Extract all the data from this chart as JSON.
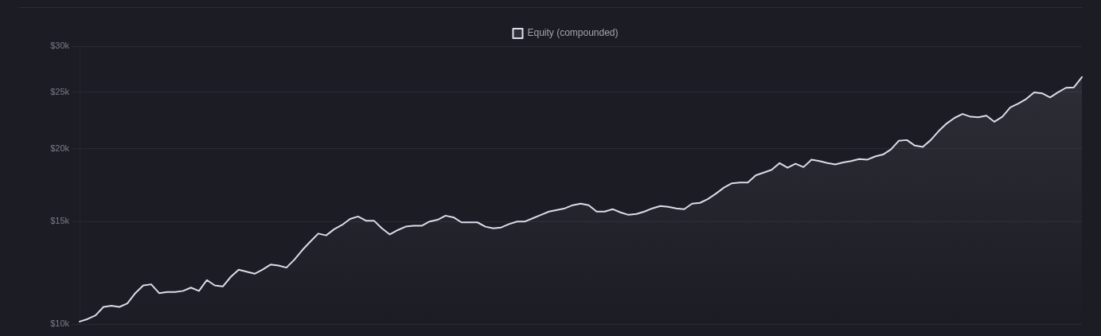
{
  "chart_data": {
    "type": "area",
    "legend": "top",
    "grid": "y",
    "log": "y",
    "tick_labels": "y",
    "categories": [
      null,
      null,
      null,
      null,
      null,
      null,
      null,
      null,
      null,
      null,
      null,
      null,
      null,
      null,
      null,
      null,
      null,
      null,
      null,
      null,
      null,
      null,
      null,
      null,
      null,
      null,
      null,
      null,
      null,
      null,
      null,
      null,
      null,
      null,
      null,
      null,
      null,
      null,
      null,
      null,
      null,
      null,
      null,
      null,
      null,
      null,
      null,
      null,
      null,
      null,
      null,
      null,
      null,
      null,
      null,
      null,
      null,
      null,
      null,
      null,
      null,
      null,
      null,
      null,
      null,
      null,
      null,
      null,
      null,
      null,
      null,
      null,
      null,
      null,
      null,
      null,
      null,
      null,
      null,
      null,
      null,
      null,
      null,
      null,
      null,
      null,
      null,
      null,
      null,
      null,
      null,
      null,
      null,
      null,
      null,
      null,
      null,
      null,
      null,
      null,
      null,
      null,
      null,
      null,
      null,
      null,
      null,
      null,
      null,
      null,
      null,
      null,
      null,
      null,
      null,
      null,
      null,
      null,
      null,
      null,
      null,
      null,
      null,
      null,
      null,
      null,
      null
    ],
    "series": [
      {
        "name": "Equity (compounded)",
        "color": "#dcdcea",
        "values": [
          10100,
          10200,
          10350,
          10700,
          10750,
          10700,
          10850,
          11300,
          11650,
          11700,
          11300,
          11350,
          11350,
          11400,
          11550,
          11400,
          11900,
          11650,
          11600,
          12050,
          12400,
          12300,
          12200,
          12400,
          12650,
          12600,
          12500,
          12900,
          13400,
          13850,
          14300,
          14200,
          14550,
          14800,
          15150,
          15300,
          15050,
          15050,
          14600,
          14250,
          14500,
          14700,
          14750,
          14750,
          15000,
          15100,
          15350,
          15250,
          14950,
          14950,
          14950,
          14700,
          14600,
          14650,
          14850,
          15000,
          15000,
          15200,
          15400,
          15600,
          15700,
          15800,
          16000,
          16100,
          16000,
          15600,
          15600,
          15750,
          15550,
          15400,
          15450,
          15600,
          15800,
          15950,
          15900,
          15800,
          15750,
          16100,
          16150,
          16400,
          16750,
          17150,
          17450,
          17500,
          17500,
          18000,
          18200,
          18400,
          18900,
          18550,
          18850,
          18600,
          19150,
          19050,
          18900,
          18800,
          18950,
          19050,
          19200,
          19150,
          19400,
          19550,
          19950,
          20650,
          20700,
          20250,
          20150,
          20700,
          21450,
          22100,
          22600,
          22950,
          22700,
          22650,
          22800,
          22250,
          22700,
          23550,
          23900,
          24350,
          25000,
          24900,
          24500,
          25000,
          25450,
          25500,
          26550
        ]
      }
    ],
    "ylim": [
      10000,
      30000
    ],
    "yticks": [
      {
        "value": 10000,
        "label": "$10k"
      },
      {
        "value": 15000,
        "label": "$15k"
      },
      {
        "value": 20000,
        "label": "$20k"
      },
      {
        "value": 25000,
        "label": "$25k"
      },
      {
        "value": 30000,
        "label": "$30k"
      }
    ]
  }
}
